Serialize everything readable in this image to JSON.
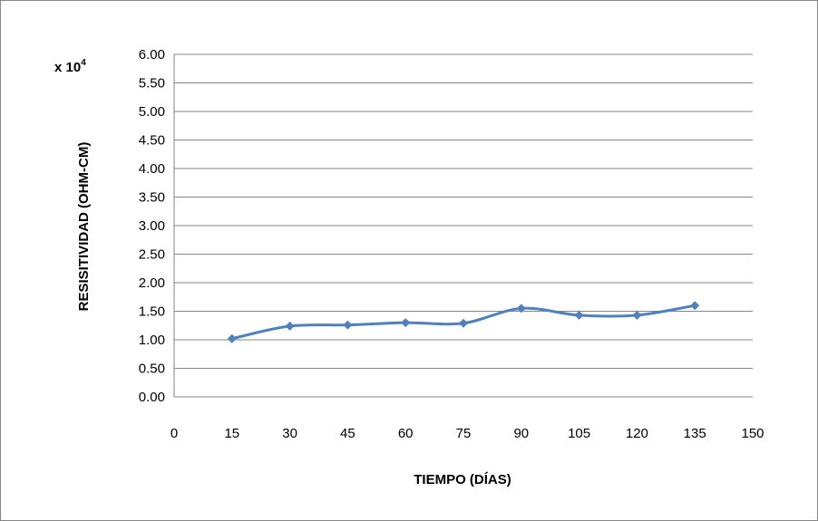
{
  "chart_data": {
    "type": "line",
    "title": "",
    "xlabel": "TIEMPO (DÍAS)",
    "ylabel": "RESISITIVIDAD (OHM-CM)",
    "y_multiplier": {
      "base": "x 10",
      "exponent": "4"
    },
    "xlim": [
      0,
      150
    ],
    "ylim": [
      0,
      6
    ],
    "x_ticks": [
      0,
      15,
      30,
      45,
      60,
      75,
      90,
      105,
      120,
      135,
      150
    ],
    "y_ticks": [
      "0.00",
      "0.50",
      "1.00",
      "1.50",
      "2.00",
      "2.50",
      "3.00",
      "3.50",
      "4.00",
      "4.50",
      "5.00",
      "5.50",
      "6.00"
    ],
    "grid": "horizontal",
    "legend": "none",
    "series": [
      {
        "color": "#4F81BD",
        "marker": "diamond",
        "smooth": true,
        "x": [
          15,
          30,
          45,
          60,
          75,
          90,
          105,
          120,
          135
        ],
        "y": [
          1.02,
          1.24,
          1.26,
          1.3,
          1.29,
          1.55,
          1.43,
          1.43,
          1.6
        ]
      }
    ]
  }
}
